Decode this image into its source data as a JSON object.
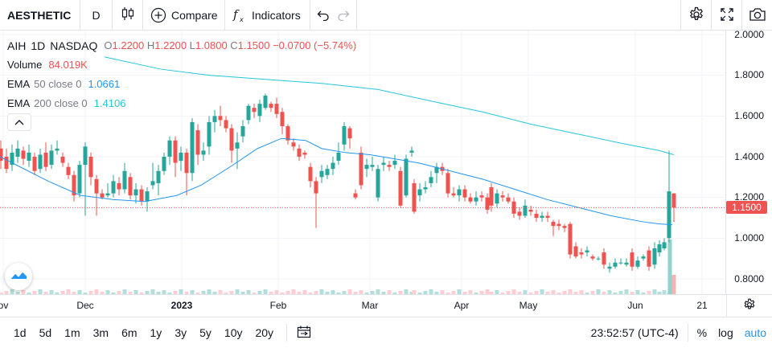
{
  "toolbar": {
    "symbol": "AESTHETIC",
    "interval": "D",
    "compare_label": "Compare",
    "indicators_label": "Indicators"
  },
  "legend": {
    "ticker": "AIH",
    "interval": "1D",
    "exchange": "NASDAQ",
    "open_label": "O",
    "open": "1.2200",
    "high_label": "H",
    "high": "1.2200",
    "low_label": "L",
    "low": "1.0800",
    "close_label": "C",
    "close": "1.1500",
    "change": "−0.0700 (−5.74%)",
    "volume_label": "Volume",
    "volume": "84.019K",
    "ema50_label": "EMA",
    "ema50_params": "50 close 0",
    "ema50_value": "1.0661",
    "ema200_label": "EMA",
    "ema200_params": "200 close 0",
    "ema200_value": "1.4106"
  },
  "price_axis": [
    "2.0000",
    "1.8000",
    "1.6000",
    "1.4000",
    "1.2000",
    "1.0000",
    "0.8000"
  ],
  "last_price": "1.1500",
  "time_axis": [
    "ov",
    "Dec",
    "2023",
    "Feb",
    "Mar",
    "Apr",
    "May",
    "Jun",
    "21"
  ],
  "ranges": [
    "1d",
    "5d",
    "1m",
    "3m",
    "6m",
    "1y",
    "3y",
    "5y",
    "10y",
    "20y"
  ],
  "bottom": {
    "clock": "23:52:57 (UTC-4)",
    "percent": "%",
    "log": "log",
    "auto": "auto"
  },
  "colors": {
    "up": "#26a69a",
    "down": "#ef5350",
    "ema50": "#2196f3",
    "ema200": "#26c6da"
  },
  "chart_data": {
    "type": "candlestick",
    "ylim": [
      0.75,
      2.03
    ],
    "ema50": [
      [
        0,
        1.4
      ],
      [
        20,
        1.36
      ],
      [
        60,
        1.28
      ],
      [
        100,
        1.21
      ],
      [
        140,
        1.19
      ],
      [
        180,
        1.18
      ],
      [
        220,
        1.21
      ],
      [
        250,
        1.26
      ],
      [
        290,
        1.36
      ],
      [
        320,
        1.44
      ],
      [
        350,
        1.49
      ],
      [
        380,
        1.48
      ],
      [
        400,
        1.44
      ],
      [
        430,
        1.42
      ],
      [
        460,
        1.41
      ],
      [
        490,
        1.39
      ],
      [
        520,
        1.37
      ],
      [
        560,
        1.33
      ],
      [
        600,
        1.29
      ],
      [
        640,
        1.24
      ],
      [
        680,
        1.19
      ],
      [
        720,
        1.15
      ],
      [
        760,
        1.11
      ],
      [
        800,
        1.08
      ],
      [
        820,
        1.07
      ],
      [
        836,
        1.066
      ]
    ],
    "ema200": [
      [
        130,
        1.89
      ],
      [
        200,
        1.83
      ],
      [
        260,
        1.8
      ],
      [
        330,
        1.78
      ],
      [
        400,
        1.76
      ],
      [
        470,
        1.73
      ],
      [
        540,
        1.67
      ],
      [
        600,
        1.62
      ],
      [
        660,
        1.56
      ],
      [
        720,
        1.51
      ],
      [
        780,
        1.46
      ],
      [
        820,
        1.43
      ],
      [
        838,
        1.41
      ]
    ],
    "candles": [
      [
        1,
        1.44,
        1.38,
        1.48,
        1.34
      ],
      [
        8,
        1.4,
        1.34,
        1.44,
        1.32
      ],
      [
        15,
        1.36,
        1.42,
        1.46,
        1.33
      ],
      [
        22,
        1.4,
        1.44,
        1.48,
        1.37
      ],
      [
        29,
        1.43,
        1.39,
        1.45,
        1.36
      ],
      [
        36,
        1.38,
        1.42,
        1.46,
        1.35
      ],
      [
        43,
        1.4,
        1.33,
        1.42,
        1.31
      ],
      [
        50,
        1.34,
        1.41,
        1.44,
        1.32
      ],
      [
        57,
        1.42,
        1.35,
        1.47,
        1.33
      ],
      [
        64,
        1.36,
        1.43,
        1.46,
        1.34
      ],
      [
        71,
        1.43,
        1.44,
        1.48,
        1.41
      ],
      [
        78,
        1.4,
        1.37,
        1.42,
        1.35
      ],
      [
        85,
        1.35,
        1.31,
        1.37,
        1.29
      ],
      [
        92,
        1.31,
        1.21,
        1.33,
        1.18
      ],
      [
        99,
        1.22,
        1.36,
        1.38,
        1.2
      ],
      [
        106,
        1.36,
        1.45,
        1.47,
        1.11
      ],
      [
        113,
        1.4,
        1.3,
        1.42,
        1.26
      ],
      [
        120,
        1.29,
        1.22,
        1.31,
        1.11
      ],
      [
        127,
        1.22,
        1.2,
        1.24,
        1.19
      ],
      [
        134,
        1.21,
        1.22,
        1.27,
        1.2
      ],
      [
        141,
        1.22,
        1.28,
        1.31,
        1.2
      ],
      [
        148,
        1.27,
        1.24,
        1.3,
        1.21
      ],
      [
        155,
        1.24,
        1.33,
        1.37,
        1.22
      ],
      [
        162,
        1.3,
        1.21,
        1.32,
        1.19
      ],
      [
        169,
        1.21,
        1.24,
        1.27,
        1.17
      ],
      [
        176,
        1.24,
        1.18,
        1.26,
        1.16
      ],
      [
        183,
        1.18,
        1.23,
        1.25,
        1.13
      ],
      [
        190,
        1.26,
        1.28,
        1.37,
        1.24
      ],
      [
        197,
        1.27,
        1.33,
        1.36,
        1.21
      ],
      [
        204,
        1.33,
        1.4,
        1.42,
        1.31
      ],
      [
        211,
        1.4,
        1.48,
        1.5,
        1.36
      ],
      [
        218,
        1.48,
        1.37,
        1.5,
        1.3
      ],
      [
        225,
        1.38,
        1.42,
        1.45,
        1.33
      ],
      [
        232,
        1.42,
        1.32,
        1.44,
        1.21
      ],
      [
        239,
        1.32,
        1.57,
        1.59,
        1.28
      ],
      [
        246,
        1.53,
        1.41,
        1.56,
        1.36
      ],
      [
        253,
        1.41,
        1.43,
        1.47,
        1.38
      ],
      [
        260,
        1.45,
        1.57,
        1.6,
        1.41
      ],
      [
        267,
        1.57,
        1.6,
        1.63,
        1.52
      ],
      [
        274,
        1.6,
        1.58,
        1.65,
        1.55
      ],
      [
        281,
        1.58,
        1.54,
        1.6,
        1.52
      ],
      [
        288,
        1.54,
        1.43,
        1.56,
        1.37
      ],
      [
        295,
        1.44,
        1.47,
        1.52,
        1.34
      ],
      [
        302,
        1.5,
        1.55,
        1.58,
        1.47
      ],
      [
        309,
        1.58,
        1.65,
        1.66,
        1.56
      ],
      [
        316,
        1.64,
        1.62,
        1.66,
        1.59
      ],
      [
        323,
        1.6,
        1.66,
        1.68,
        1.57
      ],
      [
        330,
        1.64,
        1.7,
        1.71,
        1.63
      ],
      [
        337,
        1.66,
        1.64,
        1.67,
        1.62
      ],
      [
        344,
        1.66,
        1.61,
        1.69,
        1.59
      ],
      [
        351,
        1.62,
        1.55,
        1.64,
        1.51
      ],
      [
        358,
        1.55,
        1.48,
        1.56,
        1.46
      ],
      [
        365,
        1.47,
        1.45,
        1.49,
        1.43
      ],
      [
        372,
        1.44,
        1.4,
        1.46,
        1.38
      ],
      [
        379,
        1.42,
        1.41,
        1.43,
        1.39
      ],
      [
        386,
        1.35,
        1.28,
        1.37,
        1.25
      ],
      [
        393,
        1.28,
        1.22,
        1.3,
        1.05
      ],
      [
        400,
        1.3,
        1.33,
        1.36,
        1.27
      ],
      [
        407,
        1.31,
        1.34,
        1.36,
        1.29
      ],
      [
        414,
        1.34,
        1.37,
        1.4,
        1.31
      ],
      [
        421,
        1.38,
        1.42,
        1.47,
        1.36
      ],
      [
        428,
        1.46,
        1.55,
        1.57,
        1.43
      ],
      [
        435,
        1.54,
        1.49,
        1.55,
        1.44
      ],
      [
        442,
        1.22,
        1.2,
        1.24,
        1.19
      ],
      [
        449,
        1.42,
        1.26,
        1.45,
        1.24
      ],
      [
        456,
        1.34,
        1.36,
        1.39,
        1.3
      ],
      [
        463,
        1.35,
        1.36,
        1.4,
        1.33
      ],
      [
        470,
        1.2,
        1.34,
        1.36,
        1.18
      ],
      [
        477,
        1.36,
        1.37,
        1.4,
        1.33
      ],
      [
        484,
        1.36,
        1.35,
        1.38,
        1.33
      ],
      [
        491,
        1.36,
        1.38,
        1.41,
        1.34
      ],
      [
        498,
        1.33,
        1.16,
        1.35,
        1.15
      ],
      [
        505,
        1.21,
        1.39,
        1.41,
        1.2
      ],
      [
        512,
        1.42,
        1.43,
        1.45,
        1.4
      ],
      [
        515,
        1.27,
        1.13,
        1.29,
        1.12
      ],
      [
        522,
        1.21,
        1.24,
        1.27,
        1.18
      ],
      [
        529,
        1.24,
        1.25,
        1.28,
        1.22
      ],
      [
        536,
        1.27,
        1.3,
        1.33,
        1.25
      ],
      [
        543,
        1.32,
        1.35,
        1.37,
        1.27
      ],
      [
        550,
        1.35,
        1.33,
        1.37,
        1.31
      ],
      [
        557,
        1.32,
        1.22,
        1.34,
        1.2
      ],
      [
        564,
        1.22,
        1.21,
        1.25,
        1.2
      ],
      [
        571,
        1.21,
        1.24,
        1.26,
        1.18
      ],
      [
        578,
        1.24,
        1.2,
        1.26,
        1.18
      ],
      [
        585,
        1.2,
        1.18,
        1.22,
        1.17
      ],
      [
        592,
        1.18,
        1.2,
        1.23,
        1.16
      ],
      [
        599,
        1.21,
        1.2,
        1.23,
        1.18
      ],
      [
        606,
        1.2,
        1.14,
        1.22,
        1.12
      ],
      [
        611,
        1.25,
        1.16,
        1.27,
        1.13
      ],
      [
        618,
        1.17,
        1.22,
        1.24,
        1.15
      ],
      [
        625,
        1.21,
        1.2,
        1.23,
        1.18
      ],
      [
        632,
        1.2,
        1.18,
        1.22,
        1.17
      ],
      [
        639,
        1.18,
        1.12,
        1.2,
        1.1
      ],
      [
        646,
        1.13,
        1.11,
        1.15,
        1.09
      ],
      [
        653,
        1.11,
        1.16,
        1.19,
        1.1
      ],
      [
        660,
        1.14,
        1.13,
        1.16,
        1.11
      ],
      [
        667,
        1.12,
        1.1,
        1.14,
        1.08
      ],
      [
        674,
        1.1,
        1.11,
        1.13,
        1.08
      ],
      [
        681,
        1.11,
        1.1,
        1.13,
        1.08
      ],
      [
        688,
        1.08,
        1.06,
        1.09,
        1.01
      ],
      [
        695,
        1.07,
        1.06,
        1.09,
        1.04
      ],
      [
        702,
        1.06,
        1.05,
        1.07,
        1.03
      ],
      [
        709,
        1.07,
        0.92,
        1.08,
        0.9
      ],
      [
        716,
        0.96,
        0.91,
        0.98,
        0.9
      ],
      [
        723,
        0.93,
        0.92,
        0.95,
        0.9
      ],
      [
        730,
        0.93,
        0.94,
        0.96,
        0.91
      ],
      [
        737,
        0.91,
        0.9,
        0.92,
        0.89
      ],
      [
        744,
        0.9,
        0.9,
        0.91,
        0.89
      ],
      [
        751,
        0.93,
        0.87,
        0.95,
        0.85
      ],
      [
        758,
        0.85,
        0.86,
        0.88,
        0.83
      ],
      [
        765,
        0.86,
        0.88,
        0.9,
        0.85
      ],
      [
        772,
        0.88,
        0.88,
        0.9,
        0.87
      ],
      [
        779,
        0.87,
        0.88,
        0.9,
        0.86
      ],
      [
        786,
        0.93,
        0.86,
        0.95,
        0.84
      ],
      [
        793,
        0.86,
        0.89,
        0.91,
        0.85
      ],
      [
        800,
        0.9,
        0.91,
        0.92,
        0.89
      ],
      [
        807,
        0.94,
        0.86,
        0.96,
        0.84
      ],
      [
        814,
        0.87,
        0.95,
        0.98,
        0.85
      ],
      [
        820,
        0.93,
        0.97,
        0.99,
        0.91
      ],
      [
        826,
        0.95,
        0.98,
        1.0,
        0.94
      ],
      [
        832,
        1.0,
        1.23,
        1.43,
        0.98
      ],
      [
        838,
        1.22,
        1.15,
        1.22,
        1.08
      ]
    ],
    "volume_big": [
      [
        833,
        34,
        "#8fd3cc"
      ],
      [
        838,
        12,
        "#f8b2b0"
      ]
    ]
  }
}
